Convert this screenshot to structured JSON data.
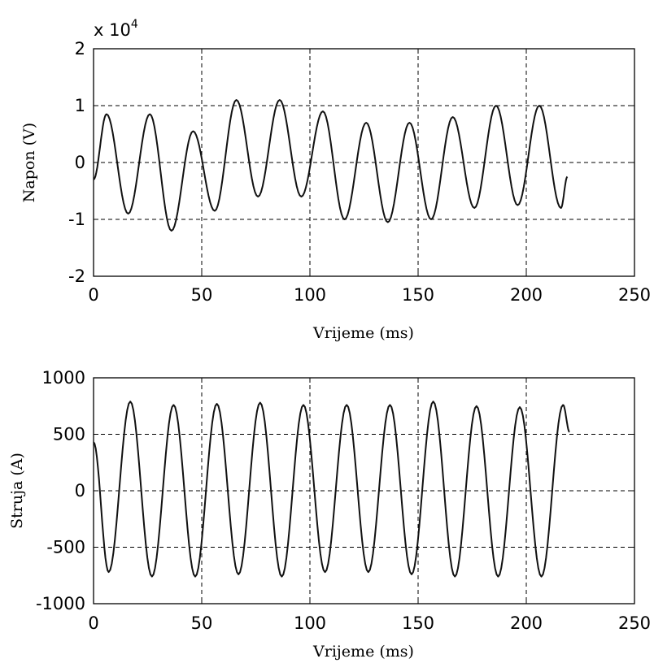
{
  "chart_data": [
    {
      "type": "line",
      "title": "",
      "xlabel": "Vrijeme (ms)",
      "ylabel": "Napon (V)",
      "y_multiplier_label": {
        "base": "x 10",
        "exponent": "4"
      },
      "xlim": [
        0,
        250
      ],
      "ylim": [
        -2,
        2
      ],
      "xticks": [
        "0",
        "50",
        "100",
        "150",
        "200",
        "250"
      ],
      "yticks": [
        "-2",
        "-1",
        "0",
        "1",
        "2"
      ],
      "grid": true,
      "line_color": "#111111",
      "series": [
        {
          "x": [
            0,
            6,
            16,
            26,
            36,
            46,
            56,
            66,
            76,
            86,
            96,
            106,
            116,
            126,
            136,
            146,
            156,
            166,
            176,
            186,
            196,
            206,
            216,
            219
          ],
          "values": [
            -0.3,
            0.85,
            -0.9,
            0.85,
            -1.2,
            0.55,
            -0.85,
            1.1,
            -0.6,
            1.1,
            -0.6,
            0.9,
            -1.0,
            0.7,
            -1.05,
            0.7,
            -1.0,
            0.8,
            -0.8,
            1.0,
            -0.75,
            1.0,
            -0.8,
            -0.25
          ]
        }
      ]
    },
    {
      "type": "line",
      "title": "",
      "xlabel": "Vrijeme (ms)",
      "ylabel": "Struja (A)",
      "xlim": [
        0,
        250
      ],
      "ylim": [
        -1000,
        1000
      ],
      "xticks": [
        "0",
        "50",
        "100",
        "150",
        "200",
        "250"
      ],
      "yticks": [
        "-1000",
        "-500",
        "0",
        "500",
        "1000"
      ],
      "grid": true,
      "line_color": "#111111",
      "series": [
        {
          "x": [
            0,
            7,
            17,
            27,
            37,
            47,
            57,
            67,
            77,
            87,
            97,
            107,
            117,
            127,
            137,
            147,
            157,
            167,
            177,
            187,
            197,
            207,
            217,
            220
          ],
          "values": [
            430,
            -720,
            790,
            -760,
            760,
            -760,
            770,
            -740,
            780,
            -760,
            760,
            -720,
            760,
            -720,
            760,
            -740,
            790,
            -760,
            750,
            -760,
            740,
            -760,
            760,
            520
          ]
        }
      ]
    }
  ]
}
